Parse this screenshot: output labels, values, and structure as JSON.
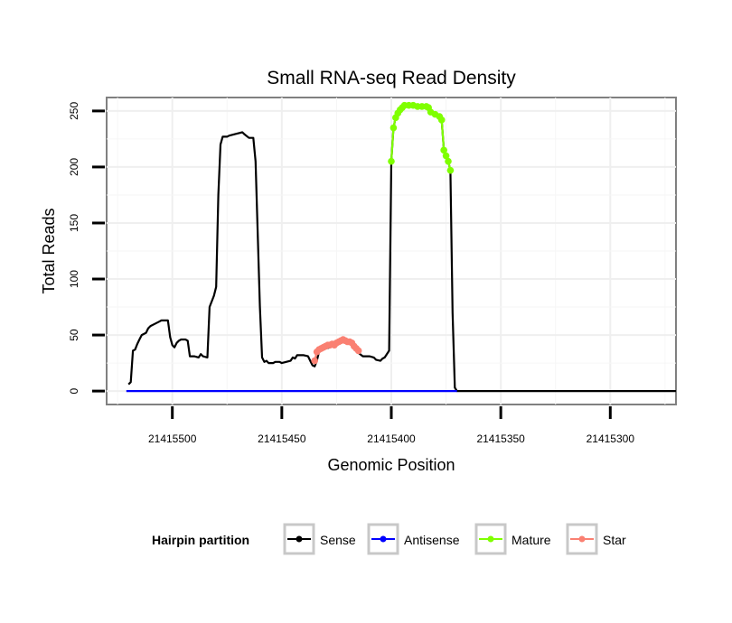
{
  "chart_data": {
    "type": "line",
    "title": "Small RNA-seq Read Density",
    "xlabel": "Genomic Position",
    "ylabel": "Total Reads",
    "x_reversed": true,
    "xlim": [
      21415530,
      21415270
    ],
    "ylim": [
      -12,
      262
    ],
    "x_ticks": [
      21415500,
      21415450,
      21415400,
      21415350,
      21415300
    ],
    "x_tick_labels": [
      "21415500",
      "21415450",
      "21415400",
      "21415350",
      "21415300"
    ],
    "y_ticks": [
      0,
      50,
      100,
      150,
      200,
      250
    ],
    "y_tick_labels": [
      "0",
      "50",
      "100",
      "150",
      "200",
      "250"
    ],
    "grid": true,
    "legend": {
      "title": "Hairpin partition",
      "position": "bottom",
      "entries": [
        {
          "name": "Sense",
          "color": "#000000"
        },
        {
          "name": "Antisense",
          "color": "#0000ff"
        },
        {
          "name": "Mature",
          "color": "#7fff00"
        },
        {
          "name": "Star",
          "color": "#fa8072"
        }
      ]
    },
    "series": [
      {
        "name": "Sense",
        "color": "#000000",
        "style": "line",
        "points": [
          [
            21415520,
            6
          ],
          [
            21415519,
            8
          ],
          [
            21415518,
            36
          ],
          [
            21415517,
            37
          ],
          [
            21415516,
            42
          ],
          [
            21415515,
            46
          ],
          [
            21415514,
            50
          ],
          [
            21415512,
            52
          ],
          [
            21415511,
            56
          ],
          [
            21415510,
            58
          ],
          [
            21415508,
            60
          ],
          [
            21415506,
            62
          ],
          [
            21415505,
            63
          ],
          [
            21415502,
            63
          ],
          [
            21415501,
            48
          ],
          [
            21415500,
            41
          ],
          [
            21415499,
            39
          ],
          [
            21415498,
            43
          ],
          [
            21415497,
            45
          ],
          [
            21415496,
            46
          ],
          [
            21415494,
            46
          ],
          [
            21415493,
            45
          ],
          [
            21415492,
            31
          ],
          [
            21415490,
            31
          ],
          [
            21415488,
            30
          ],
          [
            21415487,
            33
          ],
          [
            21415486,
            31
          ],
          [
            21415484,
            30
          ],
          [
            21415483,
            75
          ],
          [
            21415481,
            85
          ],
          [
            21415480,
            93
          ],
          [
            21415479,
            175
          ],
          [
            21415478,
            220
          ],
          [
            21415477,
            227
          ],
          [
            21415475,
            227
          ],
          [
            21415474,
            228
          ],
          [
            21415472,
            229
          ],
          [
            21415470,
            230
          ],
          [
            21415468,
            231
          ],
          [
            21415467,
            229
          ],
          [
            21415465,
            226
          ],
          [
            21415463,
            226
          ],
          [
            21415462,
            205
          ],
          [
            21415460,
            75
          ],
          [
            21415459,
            30
          ],
          [
            21415458,
            26
          ],
          [
            21415457,
            27
          ],
          [
            21415456,
            25
          ],
          [
            21415454,
            25
          ],
          [
            21415453,
            26
          ],
          [
            21415451,
            26
          ],
          [
            21415450,
            25
          ],
          [
            21415448,
            26
          ],
          [
            21415446,
            27
          ],
          [
            21415445,
            30
          ],
          [
            21415444,
            29
          ],
          [
            21415443,
            32
          ],
          [
            21415442,
            32
          ],
          [
            21415440,
            32
          ],
          [
            21415438,
            31
          ],
          [
            21415437,
            27
          ],
          [
            21415436,
            23
          ],
          [
            21415435,
            22
          ],
          [
            21415434,
            27
          ],
          [
            21415433,
            35
          ],
          [
            21415432,
            36
          ],
          [
            21415430,
            38
          ],
          [
            21415428,
            39
          ],
          [
            21415426,
            41
          ],
          [
            21415424,
            42
          ],
          [
            21415422,
            44
          ],
          [
            21415420,
            46
          ],
          [
            21415418,
            42
          ],
          [
            21415416,
            38
          ],
          [
            21415415,
            34
          ],
          [
            21415413,
            31
          ],
          [
            21415410,
            31
          ],
          [
            21415408,
            30
          ],
          [
            21415407,
            28
          ],
          [
            21415405,
            27
          ],
          [
            21415404,
            29
          ],
          [
            21415403,
            30
          ],
          [
            21415401,
            36
          ],
          [
            21415400,
            205
          ],
          [
            21415399,
            235
          ],
          [
            21415398,
            244
          ],
          [
            21415396,
            250
          ],
          [
            21415394,
            255
          ],
          [
            21415390,
            255
          ],
          [
            21415386,
            254
          ],
          [
            21415383,
            253
          ],
          [
            21415382,
            249
          ],
          [
            21415380,
            247
          ],
          [
            21415378,
            245
          ],
          [
            21415377,
            242
          ],
          [
            21415376,
            215
          ],
          [
            21415375,
            210
          ],
          [
            21415374,
            205
          ],
          [
            21415373,
            197
          ],
          [
            21415372,
            70
          ],
          [
            21415371,
            3
          ],
          [
            21415370,
            0
          ],
          [
            21415270,
            0
          ]
        ]
      },
      {
        "name": "Antisense",
        "color": "#0000ff",
        "style": "line",
        "points": [
          [
            21415521,
            0
          ],
          [
            21415370,
            0
          ]
        ]
      },
      {
        "name": "Mature",
        "color": "#7fff00",
        "style": "line+points",
        "points": [
          [
            21415400,
            205
          ],
          [
            21415399,
            235
          ],
          [
            21415398,
            244
          ],
          [
            21415397,
            248
          ],
          [
            21415396,
            251
          ],
          [
            21415395,
            253
          ],
          [
            21415394,
            255
          ],
          [
            21415392,
            255
          ],
          [
            21415390,
            255
          ],
          [
            21415388,
            254
          ],
          [
            21415386,
            254
          ],
          [
            21415384,
            254
          ],
          [
            21415383,
            253
          ],
          [
            21415382,
            249
          ],
          [
            21415380,
            247
          ],
          [
            21415378,
            245
          ],
          [
            21415377,
            242
          ],
          [
            21415376,
            215
          ],
          [
            21415375,
            210
          ],
          [
            21415374,
            205
          ],
          [
            21415373,
            197
          ]
        ]
      },
      {
        "name": "Star",
        "color": "#fa8072",
        "style": "line+points",
        "points": [
          [
            21415435,
            27
          ],
          [
            21415434,
            35
          ],
          [
            21415433,
            37
          ],
          [
            21415432,
            38
          ],
          [
            21415431,
            39
          ],
          [
            21415430,
            40
          ],
          [
            21415429,
            41
          ],
          [
            21415428,
            41
          ],
          [
            21415427,
            42
          ],
          [
            21415426,
            41
          ],
          [
            21415425,
            43
          ],
          [
            21415424,
            44
          ],
          [
            21415423,
            45
          ],
          [
            21415422,
            46
          ],
          [
            21415421,
            45
          ],
          [
            21415420,
            44
          ],
          [
            21415419,
            44
          ],
          [
            21415418,
            43
          ],
          [
            21415417,
            40
          ],
          [
            21415416,
            38
          ],
          [
            21415415,
            36
          ]
        ]
      }
    ]
  }
}
